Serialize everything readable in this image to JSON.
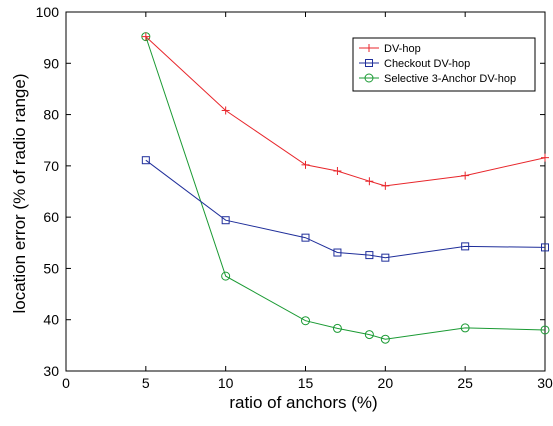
{
  "chart_data": {
    "type": "line",
    "title": "",
    "xlabel": "ratio of anchors (%)",
    "ylabel": "location error (% of radio range)",
    "xlim": [
      0,
      30
    ],
    "ylim": [
      30,
      100
    ],
    "xticks": [
      0,
      5,
      10,
      15,
      20,
      25,
      30
    ],
    "yticks": [
      30,
      40,
      50,
      60,
      70,
      80,
      90,
      100
    ],
    "grid": false,
    "legend_position": "top-right",
    "x": [
      5,
      10,
      15,
      17,
      19,
      20,
      25,
      30
    ],
    "series": [
      {
        "name": "DV-hop",
        "color": "#e8262b",
        "marker": "plus",
        "values": [
          95.2,
          80.8,
          70.2,
          69.0,
          67.0,
          66.1,
          68.1,
          71.6
        ]
      },
      {
        "name": "Checkout DV-hop",
        "color": "#1f2e9a",
        "marker": "square",
        "values": [
          71.1,
          59.4,
          56.0,
          53.1,
          52.6,
          52.1,
          54.3,
          54.1
        ]
      },
      {
        "name": "Selective 3-Anchor DV-hop",
        "color": "#1a9a33",
        "marker": "circle",
        "values": [
          95.2,
          48.5,
          39.8,
          38.3,
          37.1,
          36.2,
          38.4,
          38.0
        ]
      }
    ]
  }
}
